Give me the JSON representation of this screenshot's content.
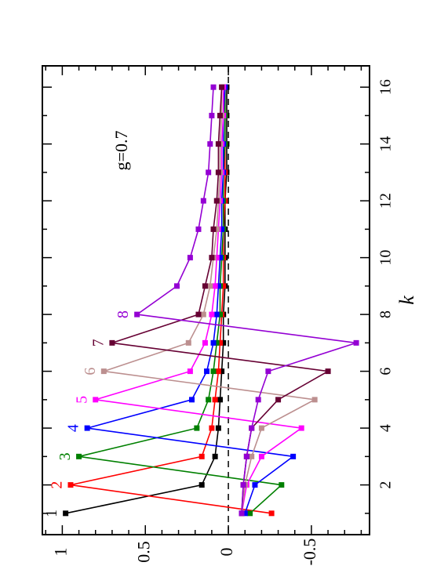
{
  "chart_data": {
    "type": "line",
    "orientation": "rotated 90 degrees counter-clockwise (x axis runs along the right edge, y axis along the bottom edge)",
    "annotation": "g=0.7",
    "xlabel": "k",
    "ylabel": "",
    "xlim": [
      0.25,
      16.75
    ],
    "ylim": [
      -0.85,
      1.12
    ],
    "x_ticks": [
      "2",
      "4",
      "6",
      "8",
      "10",
      "12",
      "14",
      "16"
    ],
    "y_ticks": [
      "1",
      "0.5",
      "0",
      "-0.5"
    ],
    "reference_line": {
      "y": 0,
      "style": "dashed"
    },
    "grid": false,
    "marker": "filled square",
    "series": [
      {
        "name": "1",
        "color": "#000000",
        "x": [
          1,
          2,
          3,
          4,
          5,
          6,
          7,
          8,
          9,
          10,
          11,
          12,
          13,
          14,
          15,
          16
        ],
        "y": [
          0.98,
          0.16,
          0.08,
          0.06,
          0.05,
          0.04,
          0.03,
          0.03,
          0.02,
          0.02,
          0.02,
          0.02,
          0.01,
          0.01,
          0.01,
          0.01
        ]
      },
      {
        "name": "2",
        "color": "#ff0000",
        "x": [
          1,
          2,
          3,
          4,
          5,
          6,
          7,
          8,
          9,
          10,
          11,
          12,
          13,
          14,
          15,
          16
        ],
        "y": [
          -0.26,
          0.95,
          0.16,
          0.1,
          0.08,
          0.06,
          0.05,
          0.04,
          0.03,
          0.03,
          0.03,
          0.02,
          0.02,
          0.02,
          0.02,
          0.02
        ]
      },
      {
        "name": "3",
        "color": "#008000",
        "x": [
          1,
          2,
          3,
          4,
          5,
          6,
          7,
          8,
          9,
          10,
          11,
          12,
          13,
          14,
          15,
          16
        ],
        "y": [
          -0.13,
          -0.32,
          0.9,
          0.19,
          0.12,
          0.09,
          0.07,
          0.05,
          0.05,
          0.04,
          0.03,
          0.03,
          0.03,
          0.02,
          0.02,
          0.02
        ]
      },
      {
        "name": "4",
        "color": "#0000ff",
        "x": [
          1,
          2,
          3,
          4,
          5,
          6,
          7,
          8,
          9,
          10,
          11,
          12,
          13,
          14,
          15,
          16
        ],
        "y": [
          -0.1,
          -0.16,
          -0.39,
          0.85,
          0.22,
          0.13,
          0.09,
          0.07,
          0.06,
          0.05,
          0.04,
          0.04,
          0.03,
          0.03,
          0.03,
          0.02
        ]
      },
      {
        "name": "5",
        "color": "#ff00ff",
        "x": [
          1,
          2,
          3,
          4,
          5,
          6,
          7,
          8,
          9,
          10,
          11,
          12,
          13,
          14,
          15,
          16
        ],
        "y": [
          -0.08,
          -0.11,
          -0.2,
          -0.44,
          0.8,
          0.23,
          0.14,
          0.1,
          0.08,
          0.07,
          0.06,
          0.05,
          0.04,
          0.04,
          0.03,
          0.03
        ]
      },
      {
        "name": "6",
        "color": "#bc8f8f",
        "x": [
          1,
          2,
          3,
          4,
          5,
          6,
          7,
          8,
          9,
          10,
          11,
          12,
          13,
          14,
          15,
          16
        ],
        "y": [
          -0.08,
          -0.1,
          -0.14,
          -0.2,
          -0.52,
          0.75,
          0.24,
          0.15,
          0.11,
          0.09,
          0.07,
          0.06,
          0.05,
          0.05,
          0.04,
          0.04
        ]
      },
      {
        "name": "7",
        "color": "#660033",
        "x": [
          1,
          2,
          3,
          4,
          5,
          6,
          7,
          8,
          9,
          10,
          11,
          12,
          13,
          14,
          15,
          16
        ],
        "y": [
          -0.08,
          -0.09,
          -0.11,
          -0.14,
          -0.3,
          -0.6,
          0.7,
          0.18,
          0.14,
          0.1,
          0.09,
          0.07,
          0.06,
          0.06,
          0.05,
          0.04
        ]
      },
      {
        "name": "8",
        "color": "#9400d3",
        "x": [
          1,
          2,
          3,
          4,
          5,
          6,
          7,
          8,
          9,
          10,
          11,
          12,
          13,
          14,
          15,
          16
        ],
        "y": [
          -0.08,
          -0.09,
          -0.11,
          -0.14,
          -0.18,
          -0.24,
          -0.77,
          0.55,
          0.31,
          0.23,
          0.18,
          0.15,
          0.12,
          0.11,
          0.1,
          0.09
        ]
      }
    ]
  }
}
